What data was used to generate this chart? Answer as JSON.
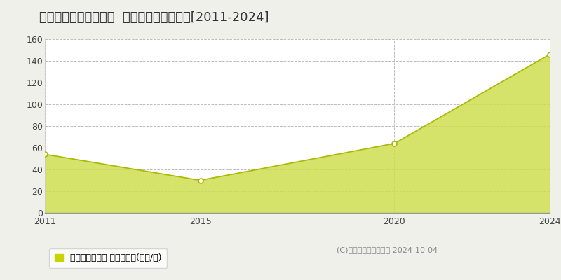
{
  "title": "横浜市栄区鍛冶ケ谷町  マンション価格推移[2011-2024]",
  "years": [
    2011,
    2015,
    2020,
    2024
  ],
  "values": [
    54,
    30,
    64,
    146
  ],
  "line_color": "#aab800",
  "fill_color": "#cede50",
  "fill_alpha": 0.85,
  "marker_color": "#ffffff",
  "marker_edge_color": "#aab800",
  "bg_color": "#f0f0eb",
  "plot_bg_color": "#ffffff",
  "grid_color": "#bbbbbb",
  "ylim": [
    0,
    160
  ],
  "yticks": [
    0,
    20,
    40,
    60,
    80,
    100,
    120,
    140,
    160
  ],
  "xticks": [
    2011,
    2015,
    2020,
    2024
  ],
  "xlim": [
    2011,
    2024
  ],
  "legend_label": "マンション価格 平均坪単価(万円/坪)",
  "legend_marker_color": "#c8d400",
  "copyright_text": "(C)土地価格ドットコム 2024-10-04",
  "title_fontsize": 13,
  "tick_fontsize": 9,
  "legend_fontsize": 9,
  "copyright_fontsize": 8
}
